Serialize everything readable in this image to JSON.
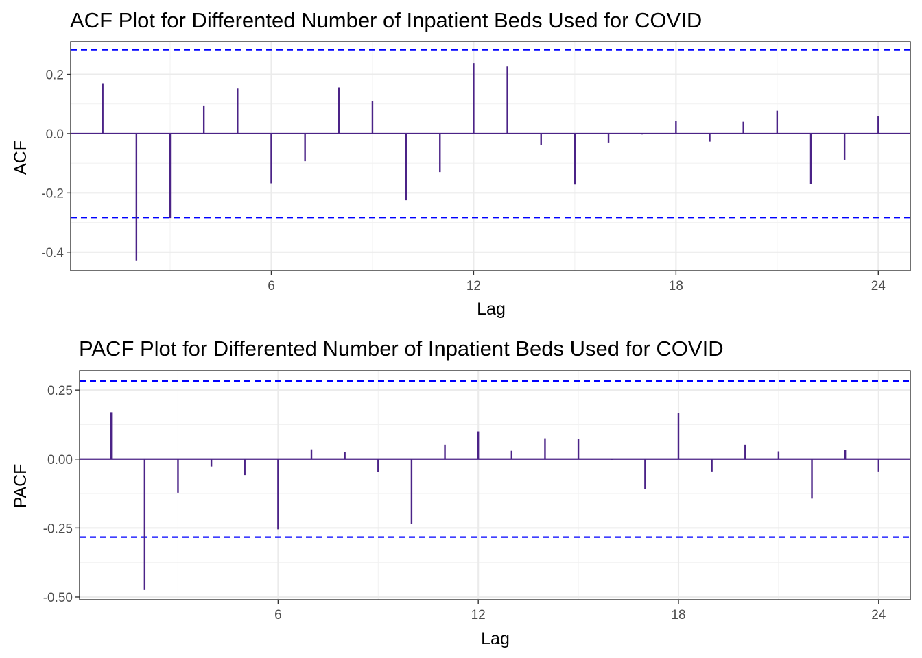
{
  "colors": {
    "bar": "#4b2387",
    "conf": "#0000ff",
    "zero": "#4b2387"
  },
  "chart_data": [
    {
      "type": "bar",
      "title": "ACF Plot for Differented Number of Inpatient Beds Used for COVID",
      "xlabel": "Lag",
      "ylabel": "ACF",
      "x_ticks": [
        6,
        12,
        18,
        24
      ],
      "x_tick_labels": [
        "6",
        "12",
        "18",
        "24"
      ],
      "xlim": [
        0.05,
        24.95
      ],
      "y_ticks": [
        -0.4,
        -0.2,
        0.0,
        0.2
      ],
      "y_tick_labels": [
        "-0.4",
        "-0.2",
        "0.0",
        "0.2"
      ],
      "ylim": [
        -0.463,
        0.31
      ],
      "conf_limit": 0.283,
      "grid": true,
      "lags": [
        1,
        2,
        3,
        4,
        5,
        6,
        7,
        8,
        9,
        10,
        11,
        12,
        13,
        14,
        15,
        16,
        17,
        18,
        19,
        20,
        21,
        22,
        23,
        24
      ],
      "values": [
        0.17,
        -0.43,
        -0.285,
        0.095,
        0.152,
        -0.168,
        -0.093,
        0.156,
        0.11,
        -0.225,
        -0.13,
        0.238,
        0.226,
        -0.038,
        -0.172,
        -0.03,
        -0.003,
        0.043,
        -0.027,
        0.04,
        0.077,
        -0.17,
        -0.088,
        0.06
      ]
    },
    {
      "type": "bar",
      "title": "PACF Plot for Differented Number of Inpatient Beds Used for COVID",
      "xlabel": "Lag",
      "ylabel": "PACF",
      "x_ticks": [
        6,
        12,
        18,
        24
      ],
      "x_tick_labels": [
        "6",
        "12",
        "18",
        "24"
      ],
      "xlim": [
        0.05,
        24.95
      ],
      "y_ticks": [
        -0.5,
        -0.25,
        0.0,
        0.25
      ],
      "y_tick_labels": [
        "-0.50",
        "-0.25",
        "0.00",
        "0.25"
      ],
      "ylim": [
        -0.51,
        0.32
      ],
      "conf_limit": 0.283,
      "grid": true,
      "lags": [
        1,
        2,
        3,
        4,
        5,
        6,
        7,
        8,
        9,
        10,
        11,
        12,
        13,
        14,
        15,
        16,
        17,
        18,
        19,
        20,
        21,
        22,
        23,
        24
      ],
      "values": [
        0.17,
        -0.475,
        -0.122,
        -0.027,
        -0.058,
        -0.255,
        0.035,
        0.025,
        -0.047,
        -0.235,
        0.052,
        0.1,
        0.03,
        0.075,
        0.073,
        -0.003,
        -0.108,
        0.168,
        -0.045,
        0.052,
        0.028,
        -0.143,
        0.032,
        -0.045
      ]
    }
  ]
}
